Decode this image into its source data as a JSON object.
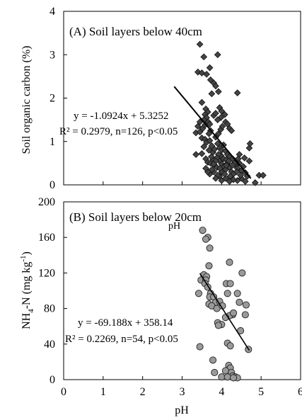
{
  "chart_data": [
    {
      "type": "scatter",
      "title": "(A) Soil layers below 40cm",
      "xlabel": "pH",
      "ylabel": "Soil organic carbon (%)",
      "xlim": [
        0,
        6
      ],
      "ylim": [
        0,
        4
      ],
      "y_ticks": [
        "0",
        "1",
        "2",
        "3",
        "4"
      ],
      "x_tick_labels_shown": false,
      "grid": false,
      "marker": "diamond",
      "marker_color": "#444444",
      "equation": "y = -1.0924x + 5.3252",
      "stats": "R² = 0.2979, n=126, p<0.05",
      "trendline": {
        "x1": 2.8,
        "x2": 4.74,
        "slope": -1.0924,
        "intercept": 5.3252
      },
      "points": [
        [
          3.45,
          3.24
        ],
        [
          3.4,
          2.6
        ],
        [
          3.5,
          2.58
        ],
        [
          3.55,
          2.95
        ],
        [
          3.62,
          2.55
        ],
        [
          3.7,
          2.7
        ],
        [
          3.72,
          2.42
        ],
        [
          3.8,
          2.35
        ],
        [
          3.85,
          2.28
        ],
        [
          3.9,
          3.0
        ],
        [
          3.92,
          2.15
        ],
        [
          3.75,
          2.1
        ],
        [
          4.4,
          2.12
        ],
        [
          3.5,
          1.9
        ],
        [
          3.6,
          1.75
        ],
        [
          3.65,
          1.68
        ],
        [
          3.58,
          1.62
        ],
        [
          3.62,
          1.55
        ],
        [
          3.55,
          1.5
        ],
        [
          3.66,
          1.45
        ],
        [
          3.7,
          1.4
        ],
        [
          3.8,
          1.6
        ],
        [
          3.85,
          1.65
        ],
        [
          3.95,
          1.78
        ],
        [
          4.0,
          1.7
        ],
        [
          4.08,
          1.62
        ],
        [
          3.98,
          1.55
        ],
        [
          3.9,
          1.5
        ],
        [
          4.1,
          1.45
        ],
        [
          4.15,
          1.4
        ],
        [
          4.2,
          1.3
        ],
        [
          4.25,
          1.25
        ],
        [
          3.4,
          1.35
        ],
        [
          3.35,
          1.2
        ],
        [
          3.45,
          1.22
        ],
        [
          3.5,
          1.08
        ],
        [
          3.58,
          1.05
        ],
        [
          3.62,
          0.98
        ],
        [
          3.7,
          1.02
        ],
        [
          3.75,
          0.9
        ],
        [
          3.85,
          1.1
        ],
        [
          3.9,
          0.95
        ],
        [
          3.95,
          0.85
        ],
        [
          4.0,
          0.8
        ],
        [
          4.05,
          0.92
        ],
        [
          4.1,
          0.78
        ],
        [
          4.15,
          0.7
        ],
        [
          4.2,
          0.65
        ],
        [
          3.35,
          0.7
        ],
        [
          3.5,
          0.72
        ],
        [
          3.6,
          0.6
        ],
        [
          3.65,
          0.52
        ],
        [
          3.72,
          0.5
        ],
        [
          3.78,
          0.58
        ],
        [
          3.82,
          0.45
        ],
        [
          3.88,
          0.4
        ],
        [
          3.95,
          0.55
        ],
        [
          4.0,
          0.48
        ],
        [
          4.05,
          0.42
        ],
        [
          4.1,
          0.35
        ],
        [
          4.15,
          0.5
        ],
        [
          4.2,
          0.4
        ],
        [
          4.25,
          0.3
        ],
        [
          4.3,
          0.25
        ],
        [
          4.35,
          0.45
        ],
        [
          4.4,
          0.38
        ],
        [
          4.45,
          0.5
        ],
        [
          4.5,
          0.32
        ],
        [
          4.55,
          0.42
        ],
        [
          4.6,
          0.28
        ],
        [
          4.65,
          0.2
        ],
        [
          4.7,
          0.55
        ],
        [
          4.7,
          0.85
        ],
        [
          4.72,
          0.95
        ],
        [
          4.58,
          0.62
        ],
        [
          4.45,
          0.7
        ],
        [
          4.5,
          0.15
        ],
        [
          4.4,
          0.1
        ],
        [
          4.3,
          0.12
        ],
        [
          4.2,
          0.08
        ],
        [
          4.1,
          0.15
        ],
        [
          4.0,
          0.1
        ],
        [
          3.95,
          0.2
        ],
        [
          3.9,
          0.22
        ],
        [
          3.85,
          0.15
        ],
        [
          3.8,
          0.3
        ],
        [
          3.75,
          0.35
        ],
        [
          3.7,
          0.25
        ],
        [
          3.65,
          0.3
        ],
        [
          3.6,
          0.38
        ],
        [
          4.95,
          0.22
        ],
        [
          5.05,
          0.22
        ],
        [
          4.85,
          0.05
        ],
        [
          4.6,
          0.08
        ],
        [
          4.05,
          0.6
        ],
        [
          3.98,
          0.68
        ],
        [
          3.92,
          0.7
        ],
        [
          3.88,
          0.62
        ],
        [
          4.12,
          0.58
        ],
        [
          4.18,
          0.55
        ],
        [
          4.28,
          0.6
        ],
        [
          4.32,
          0.5
        ],
        [
          3.55,
          0.88
        ],
        [
          3.68,
          0.8
        ],
        [
          3.78,
          0.75
        ],
        [
          3.82,
          0.82
        ],
        [
          3.92,
          1.18
        ],
        [
          3.98,
          1.28
        ],
        [
          4.02,
          1.35
        ],
        [
          3.72,
          1.25
        ],
        [
          3.68,
          1.18
        ],
        [
          3.52,
          1.3
        ],
        [
          3.45,
          1.45
        ],
        [
          3.58,
          1.38
        ],
        [
          4.22,
          0.2
        ],
        [
          4.28,
          0.45
        ],
        [
          4.38,
          0.3
        ],
        [
          4.42,
          0.6
        ],
        [
          4.48,
          0.22
        ],
        [
          3.85,
          0.55
        ],
        [
          3.8,
          0.48
        ],
        [
          4.0,
          0.3
        ],
        [
          3.96,
          0.38
        ],
        [
          4.08,
          0.25
        ],
        [
          4.12,
          0.45
        ],
        [
          3.74,
          0.65
        ]
      ]
    },
    {
      "type": "scatter",
      "title": "(B) Soil layers below 20cm",
      "stray_label": "pH",
      "xlabel": "pH",
      "ylabel_main": "NH",
      "ylabel_sub": "4",
      "ylabel_rest": "-N (mg kg",
      "ylabel_sup": "-1",
      "ylabel_end": ")",
      "xlim": [
        0,
        6
      ],
      "ylim": [
        0,
        200
      ],
      "x_ticks": [
        "0",
        "1",
        "2",
        "3",
        "4",
        "5",
        "6"
      ],
      "y_ticks": [
        "0",
        "40",
        "80",
        "120",
        "160",
        "200"
      ],
      "grid": false,
      "marker": "circle",
      "marker_color": "#9a9a9a",
      "equation": "y = -69.188x + 358.14",
      "stats": "R² = 0.2269, n=54, p<0.05",
      "trendline": {
        "x1": 3.45,
        "x2": 4.7,
        "slope": -69.188,
        "intercept": 358.14
      },
      "points": [
        [
          3.52,
          168
        ],
        [
          3.65,
          160
        ],
        [
          3.7,
          148
        ],
        [
          3.6,
          158
        ],
        [
          3.68,
          128
        ],
        [
          4.2,
          132
        ],
        [
          3.55,
          118
        ],
        [
          3.62,
          116
        ],
        [
          3.48,
          112
        ],
        [
          3.6,
          112
        ],
        [
          3.58,
          108
        ],
        [
          3.65,
          104
        ],
        [
          3.42,
          97
        ],
        [
          3.72,
          97
        ],
        [
          3.7,
          93
        ],
        [
          3.8,
          93
        ],
        [
          3.85,
          87
        ],
        [
          3.68,
          85
        ],
        [
          3.75,
          83
        ],
        [
          3.88,
          80
        ],
        [
          3.95,
          88
        ],
        [
          4.02,
          83
        ],
        [
          4.12,
          108
        ],
        [
          4.22,
          108
        ],
        [
          4.15,
          97
        ],
        [
          4.52,
          120
        ],
        [
          4.4,
          97
        ],
        [
          4.45,
          87
        ],
        [
          4.62,
          84
        ],
        [
          4.6,
          73
        ],
        [
          4.28,
          73
        ],
        [
          4.2,
          72
        ],
        [
          4.1,
          70
        ],
        [
          3.9,
          64
        ],
        [
          4.0,
          62
        ],
        [
          3.92,
          61
        ],
        [
          4.3,
          75
        ],
        [
          4.48,
          55
        ],
        [
          4.15,
          41
        ],
        [
          4.22,
          38
        ],
        [
          3.45,
          37
        ],
        [
          4.68,
          34
        ],
        [
          3.78,
          22
        ],
        [
          3.82,
          8
        ],
        [
          4.18,
          16
        ],
        [
          4.22,
          13
        ],
        [
          4.1,
          10
        ],
        [
          4.25,
          8
        ],
        [
          4.28,
          4
        ],
        [
          4.35,
          3
        ],
        [
          4.0,
          3
        ],
        [
          4.4,
          2
        ],
        [
          4.15,
          3
        ],
        [
          4.3,
          2
        ]
      ]
    }
  ]
}
